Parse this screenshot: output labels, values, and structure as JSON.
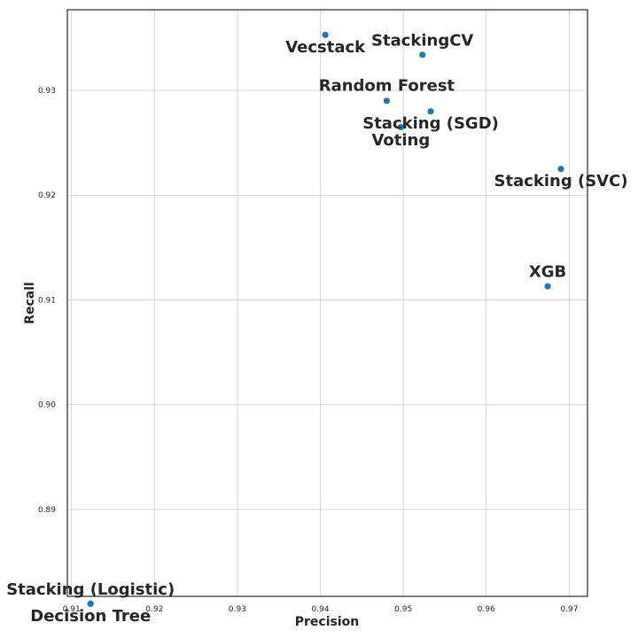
{
  "chart_data": {
    "type": "scatter",
    "title": "",
    "xlabel": "Precision",
    "ylabel": "Recall",
    "xlim": [
      0.9095,
      0.9722
    ],
    "ylim": [
      0.8817,
      0.9377
    ],
    "xticks": [
      0.91,
      0.92,
      0.93,
      0.94,
      0.95,
      0.96,
      0.97
    ],
    "xtick_labels": [
      "0.91",
      "0.92",
      "0.93",
      "0.94",
      "0.95",
      "0.96",
      "0.97"
    ],
    "yticks": [
      0.89,
      0.9,
      0.91,
      0.92,
      0.93
    ],
    "ytick_labels": [
      "0.89",
      "0.90",
      "0.91",
      "0.92",
      "0.93"
    ],
    "grid": true,
    "color": "#1f77b4",
    "points": [
      {
        "label": "Vecstack",
        "x": 0.9406,
        "y": 0.9353
      },
      {
        "label": "StackingCV",
        "x": 0.9523,
        "y": 0.9334
      },
      {
        "label": "Random Forest",
        "x": 0.948,
        "y": 0.929
      },
      {
        "label": "Stacking (SGD)",
        "x": 0.9533,
        "y": 0.928
      },
      {
        "label": "Voting",
        "x": 0.9497,
        "y": 0.9265
      },
      {
        "label": "Stacking (SVC)",
        "x": 0.969,
        "y": 0.9225
      },
      {
        "label": "XGB",
        "x": 0.9674,
        "y": 0.9113
      },
      {
        "label": "Stacking (Logistic)",
        "x": 0.9123,
        "y": 0.881
      },
      {
        "label": "Decision Tree",
        "x": 0.9123,
        "y": 0.881
      }
    ]
  }
}
